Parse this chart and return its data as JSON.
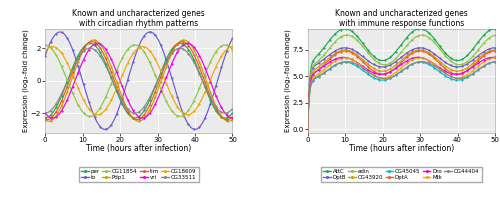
{
  "left_title": "Known and uncharacterized genes\nwith circadian rhythm patterns",
  "right_title": "Known and uncharacterized genes\nwith immune response functions",
  "xlabel": "Time (hours after infection)",
  "ylabel": "Expression (log₂-fold change)",
  "left_xlim": [
    0,
    50
  ],
  "left_ylim": [
    -3.2,
    3.2
  ],
  "right_xlim": [
    0,
    50
  ],
  "right_ylim": [
    -0.3,
    9.5
  ],
  "left_xticks": [
    0,
    10,
    20,
    30,
    40,
    50
  ],
  "right_xticks": [
    0,
    10,
    20,
    30,
    40,
    50
  ],
  "left_yticks": [
    -2,
    0,
    2
  ],
  "right_yticks": [
    0.0,
    2.5,
    5.0,
    7.5
  ],
  "left_genes": {
    "per": {
      "color": "#1aaa55"
    },
    "to": {
      "color": "#6a5acd"
    },
    "CG11854": {
      "color": "#8dc63f"
    },
    "Pdp1": {
      "color": "#c8a000"
    },
    "tim": {
      "color": "#e8601c"
    },
    "vri": {
      "color": "#e800e8"
    },
    "CG18609": {
      "color": "#f0a800"
    },
    "CG33511": {
      "color": "#888888"
    }
  },
  "right_genes": {
    "AttC": {
      "color": "#1aaa55"
    },
    "DptB": {
      "color": "#6a5acd"
    },
    "edin": {
      "color": "#8dc63f"
    },
    "CG43920": {
      "color": "#c8a000"
    },
    "CG45045": {
      "color": "#00b8d4"
    },
    "DptA": {
      "color": "#e8601c"
    },
    "Dro": {
      "color": "#e800e8"
    },
    "Mtk": {
      "color": "#f0a800"
    },
    "CG44404": {
      "color": "#888888"
    }
  }
}
